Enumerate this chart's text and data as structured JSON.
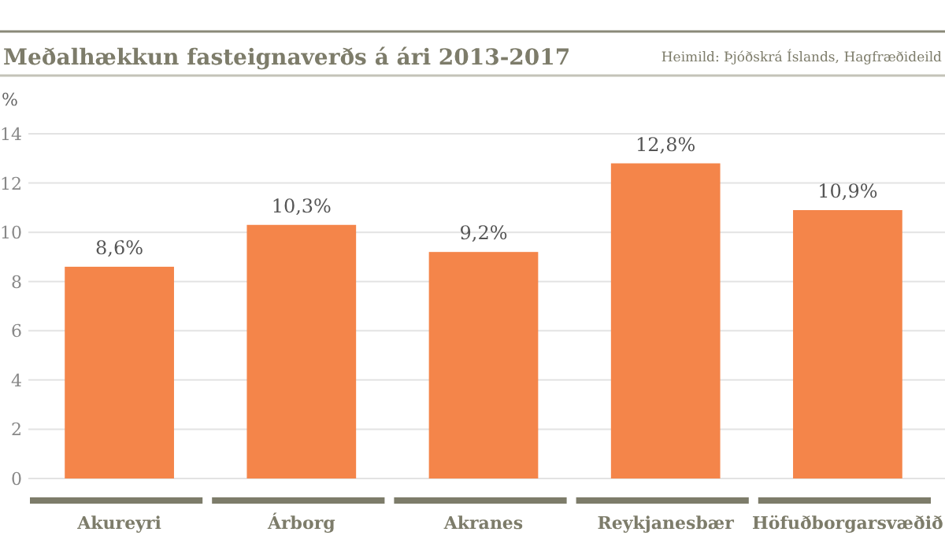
{
  "chart_data": {
    "type": "bar",
    "title": "Meðalhækkun fasteignaverðs á ári 2013-2017",
    "ylabel": "%",
    "annotations": [
      "Heimild: Þjóðskrá Íslands, Hagfræðideild"
    ],
    "categories": [
      "Akureyri",
      "Árborg",
      "Akranes",
      "Reykjanesbær",
      "Höfuðborgarsvæðið"
    ],
    "values": [
      8.6,
      10.3,
      9.2,
      12.8,
      10.9
    ],
    "value_labels": [
      "8,6%",
      "10,3%",
      "9,2%",
      "12,8%",
      "10,9%"
    ],
    "color": "#f4854a",
    "ylim": [
      0,
      14
    ],
    "yticks": [
      0,
      2,
      4,
      6,
      8,
      10,
      12,
      14
    ],
    "grid": "y"
  }
}
